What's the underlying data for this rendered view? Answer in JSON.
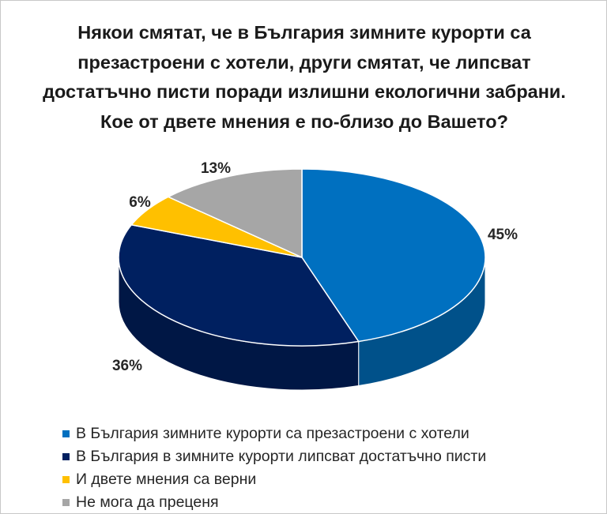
{
  "chart_data": {
    "type": "pie",
    "title_lines": [
      "Някои смятат, че в България зимните курорти са",
      "презастроени с хотели, други смятат, че липсват",
      "достатъчно писти поради излишни екологични забрани.",
      "Кое от двете мнения е по-близо до Вашето?"
    ],
    "slices": [
      {
        "label": "В България зимните курорти са презастроени с хотели",
        "value": 45,
        "value_label": "45%",
        "color": "#0070c0"
      },
      {
        "label": "В България в зимните курорти липсват достатъчно писти",
        "value": 36,
        "value_label": "36%",
        "color": "#002060"
      },
      {
        "label": "И двете мнения са верни",
        "value": 6,
        "value_label": "6%",
        "color": "#ffc000"
      },
      {
        "label": "Не мога да преценя",
        "value": 13,
        "value_label": "13%",
        "color": "#a6a6a6"
      }
    ],
    "legend_position": "bottom"
  }
}
